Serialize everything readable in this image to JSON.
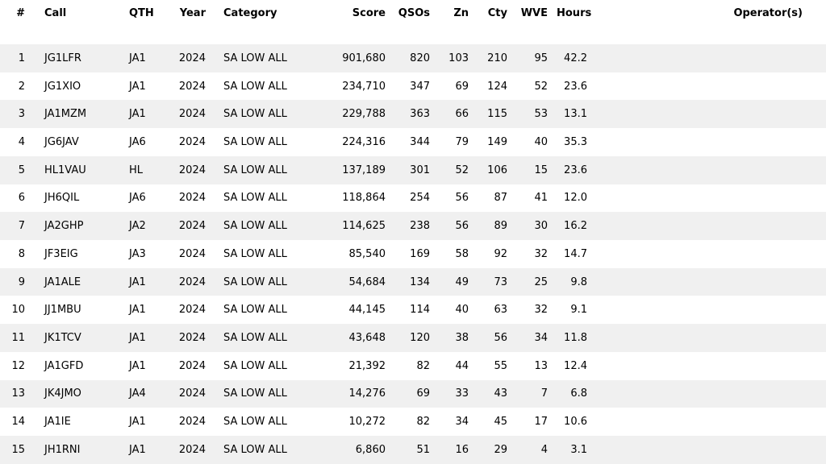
{
  "colors": {
    "background": "#ffffff",
    "row_alt_stripe": "#f0f0f0",
    "text": "#000000"
  },
  "table": {
    "columns": [
      {
        "key": "rank",
        "label": "#"
      },
      {
        "key": "call",
        "label": "Call"
      },
      {
        "key": "qth",
        "label": "QTH"
      },
      {
        "key": "year",
        "label": "Year"
      },
      {
        "key": "category",
        "label": "Category"
      },
      {
        "key": "score",
        "label": "Score"
      },
      {
        "key": "qsos",
        "label": "QSOs"
      },
      {
        "key": "zn",
        "label": "Zn"
      },
      {
        "key": "cty",
        "label": "Cty"
      },
      {
        "key": "wve",
        "label": "WVE"
      },
      {
        "key": "hours",
        "label": "Hours"
      },
      {
        "key": "operators",
        "label": "Operator(s)"
      }
    ],
    "rows": [
      {
        "rank": "1",
        "call": "JG1LFR",
        "qth": "JA1",
        "year": "2024",
        "category": "SA LOW ALL",
        "score": "901,680",
        "qsos": "820",
        "zn": "103",
        "cty": "210",
        "wve": "95",
        "hours": "42.2",
        "operators": ""
      },
      {
        "rank": "2",
        "call": "JG1XIO",
        "qth": "JA1",
        "year": "2024",
        "category": "SA LOW ALL",
        "score": "234,710",
        "qsos": "347",
        "zn": "69",
        "cty": "124",
        "wve": "52",
        "hours": "23.6",
        "operators": ""
      },
      {
        "rank": "3",
        "call": "JA1MZM",
        "qth": "JA1",
        "year": "2024",
        "category": "SA LOW ALL",
        "score": "229,788",
        "qsos": "363",
        "zn": "66",
        "cty": "115",
        "wve": "53",
        "hours": "13.1",
        "operators": ""
      },
      {
        "rank": "4",
        "call": "JG6JAV",
        "qth": "JA6",
        "year": "2024",
        "category": "SA LOW ALL",
        "score": "224,316",
        "qsos": "344",
        "zn": "79",
        "cty": "149",
        "wve": "40",
        "hours": "35.3",
        "operators": ""
      },
      {
        "rank": "5",
        "call": "HL1VAU",
        "qth": "HL",
        "year": "2024",
        "category": "SA LOW ALL",
        "score": "137,189",
        "qsos": "301",
        "zn": "52",
        "cty": "106",
        "wve": "15",
        "hours": "23.6",
        "operators": ""
      },
      {
        "rank": "6",
        "call": "JH6QIL",
        "qth": "JA6",
        "year": "2024",
        "category": "SA LOW ALL",
        "score": "118,864",
        "qsos": "254",
        "zn": "56",
        "cty": "87",
        "wve": "41",
        "hours": "12.0",
        "operators": ""
      },
      {
        "rank": "7",
        "call": "JA2GHP",
        "qth": "JA2",
        "year": "2024",
        "category": "SA LOW ALL",
        "score": "114,625",
        "qsos": "238",
        "zn": "56",
        "cty": "89",
        "wve": "30",
        "hours": "16.2",
        "operators": ""
      },
      {
        "rank": "8",
        "call": "JF3EIG",
        "qth": "JA3",
        "year": "2024",
        "category": "SA LOW ALL",
        "score": "85,540",
        "qsos": "169",
        "zn": "58",
        "cty": "92",
        "wve": "32",
        "hours": "14.7",
        "operators": ""
      },
      {
        "rank": "9",
        "call": "JA1ALE",
        "qth": "JA1",
        "year": "2024",
        "category": "SA LOW ALL",
        "score": "54,684",
        "qsos": "134",
        "zn": "49",
        "cty": "73",
        "wve": "25",
        "hours": "9.8",
        "operators": ""
      },
      {
        "rank": "10",
        "call": "JJ1MBU",
        "qth": "JA1",
        "year": "2024",
        "category": "SA LOW ALL",
        "score": "44,145",
        "qsos": "114",
        "zn": "40",
        "cty": "63",
        "wve": "32",
        "hours": "9.1",
        "operators": ""
      },
      {
        "rank": "11",
        "call": "JK1TCV",
        "qth": "JA1",
        "year": "2024",
        "category": "SA LOW ALL",
        "score": "43,648",
        "qsos": "120",
        "zn": "38",
        "cty": "56",
        "wve": "34",
        "hours": "11.8",
        "operators": ""
      },
      {
        "rank": "12",
        "call": "JA1GFD",
        "qth": "JA1",
        "year": "2024",
        "category": "SA LOW ALL",
        "score": "21,392",
        "qsos": "82",
        "zn": "44",
        "cty": "55",
        "wve": "13",
        "hours": "12.4",
        "operators": ""
      },
      {
        "rank": "13",
        "call": "JK4JMO",
        "qth": "JA4",
        "year": "2024",
        "category": "SA LOW ALL",
        "score": "14,276",
        "qsos": "69",
        "zn": "33",
        "cty": "43",
        "wve": "7",
        "hours": "6.8",
        "operators": ""
      },
      {
        "rank": "14",
        "call": "JA1IE",
        "qth": "JA1",
        "year": "2024",
        "category": "SA LOW ALL",
        "score": "10,272",
        "qsos": "82",
        "zn": "34",
        "cty": "45",
        "wve": "17",
        "hours": "10.6",
        "operators": ""
      },
      {
        "rank": "15",
        "call": "JH1RNI",
        "qth": "JA1",
        "year": "2024",
        "category": "SA LOW ALL",
        "score": "6,860",
        "qsos": "51",
        "zn": "16",
        "cty": "29",
        "wve": "4",
        "hours": "3.1",
        "operators": ""
      }
    ]
  }
}
